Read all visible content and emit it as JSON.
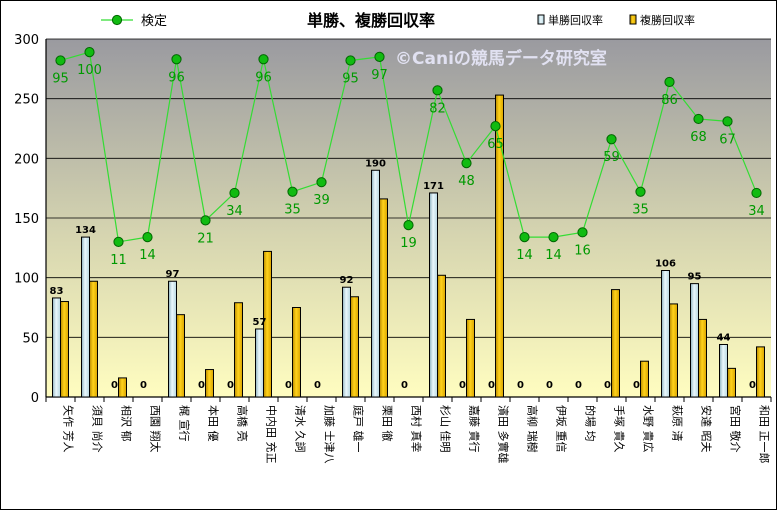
{
  "chart_data": {
    "type": "bar",
    "title": "単勝、複勝回収率",
    "watermark": "©Caniの競馬データ研究室",
    "ylim": [
      0,
      300
    ],
    "yticks": [
      0,
      50,
      100,
      150,
      200,
      250,
      300
    ],
    "grid": true,
    "legend_position": "top",
    "categories": [
      "矢作 芳人",
      "須貝 尚介",
      "相沢 郁",
      "西園 翔太",
      "梶 宣行",
      "本田 優",
      "高橋 亮",
      "中内田 充正",
      "清水 久詞",
      "加藤 士津八",
      "庭戸 雄一",
      "栗田 徹",
      "西村 真幸",
      "杉山 佳明",
      "嘉藤 貴行",
      "濱田 多實雄",
      "高柳 瑞樹",
      "伊坂 重信",
      "的場 均",
      "手塚 貴久",
      "水野 貴広",
      "萩原 清",
      "安達 昭夫",
      "宮田 敬介",
      "和田 正一郎"
    ],
    "series": [
      {
        "name": "単勝回収率",
        "type": "bar",
        "color": "#cfeef7",
        "values": [
          83,
          134,
          0,
          0,
          97,
          0,
          0,
          57,
          0,
          0,
          92,
          190,
          0,
          171,
          0,
          0,
          0,
          0,
          0,
          0,
          0,
          106,
          95,
          44,
          0
        ],
        "labels": [
          "83",
          "134",
          "0",
          "0",
          "97",
          "0",
          "0",
          "57",
          "0",
          "0",
          "92",
          "190",
          "0",
          "171",
          "0",
          "0",
          "0",
          "0",
          "0",
          "0",
          "0",
          "106",
          "95",
          "44",
          "0"
        ]
      },
      {
        "name": "複勝回収率",
        "type": "bar",
        "color": "#f5c000",
        "values": [
          80,
          97,
          16,
          0,
          69,
          23,
          79,
          122,
          75,
          0,
          84,
          166,
          0,
          102,
          65,
          253,
          0,
          0,
          0,
          90,
          30,
          78,
          65,
          24,
          42
        ]
      },
      {
        "name": "検定",
        "type": "line",
        "color": "#22cc22",
        "values": [
          282,
          289,
          130,
          134,
          283,
          148,
          171,
          283,
          172,
          180,
          282,
          285,
          144,
          257,
          196,
          227,
          134,
          134,
          138,
          216,
          172,
          264,
          233,
          231,
          171
        ],
        "labels": [
          "95",
          "100",
          "11",
          "14",
          "96",
          "21",
          "34",
          "96",
          "35",
          "39",
          "95",
          "97",
          "19",
          "82",
          "48",
          "65",
          "14",
          "14",
          "16",
          "59",
          "35",
          "86",
          "68",
          "67",
          "34"
        ]
      }
    ]
  }
}
